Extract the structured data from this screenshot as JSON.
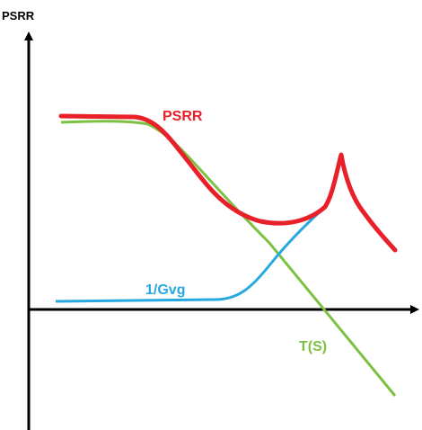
{
  "y_axis_label": "PSRR",
  "curves": [
    {
      "name": "psrr-curve",
      "label": "PSRR",
      "color": "#e8202a"
    },
    {
      "name": "gvg-curve",
      "label": "1/Gvg",
      "color": "#29a8e0"
    },
    {
      "name": "ts-curve",
      "label": "T(S)",
      "color": "#7cc142"
    }
  ],
  "axis_color": "#000000"
}
